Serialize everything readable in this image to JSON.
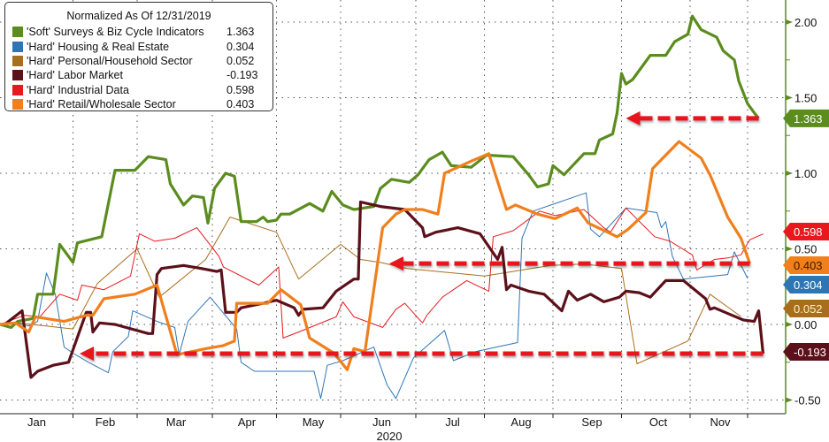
{
  "chart_data": {
    "type": "line",
    "title": "Normalized As Of 12/31/2019",
    "x_unit": "day of year 2020",
    "xlabel": "2020",
    "ylabel": "",
    "ylim": [
      -0.6,
      2.15
    ],
    "xlim": [
      0,
      355
    ],
    "grid": true,
    "legend_position": "top-left",
    "y_ticks": [
      {
        "v": 2.0,
        "label": "2.00"
      },
      {
        "v": 1.5,
        "label": "1.50"
      },
      {
        "v": 1.0,
        "label": "1.00"
      },
      {
        "v": 0.5,
        "label": "0.50"
      },
      {
        "v": 0.0,
        "label": "0.00"
      },
      {
        "v": -0.5,
        "label": "-0.50"
      }
    ],
    "x_month_labels": [
      {
        "d": 15,
        "label": "Jan"
      },
      {
        "d": 46,
        "label": "Feb"
      },
      {
        "d": 78,
        "label": "Mar"
      },
      {
        "d": 110,
        "label": "Apr"
      },
      {
        "d": 140,
        "label": "May"
      },
      {
        "d": 171,
        "label": "Jun"
      },
      {
        "d": 203,
        "label": "Jul"
      },
      {
        "d": 234,
        "label": "Aug"
      },
      {
        "d": 266,
        "label": "Sep"
      },
      {
        "d": 296,
        "label": "Oct"
      },
      {
        "d": 324,
        "label": "Nov"
      }
    ],
    "x_grid_days": [
      33,
      62,
      96,
      125,
      154,
      188,
      219,
      250,
      281,
      312,
      338
    ],
    "series": [
      {
        "name": "'Soft' Surveys & Biz Cycle Indicators",
        "last": "1.363",
        "color": "#5b8c1e",
        "tag_text": "#ffffff",
        "width": 3.2,
        "x": [
          0,
          5,
          8,
          15,
          17,
          24,
          27,
          33,
          35,
          46,
          52,
          61,
          67,
          75,
          77,
          83,
          87,
          92,
          94,
          97,
          102,
          106,
          109,
          116,
          119,
          121,
          125,
          127,
          131,
          140,
          146,
          150,
          155,
          160,
          169,
          172,
          177,
          185,
          189,
          194,
          200,
          204,
          213,
          220,
          232,
          239,
          243,
          248,
          250,
          255,
          264,
          269,
          271,
          277,
          279,
          281,
          283,
          286,
          294,
          301,
          305,
          311,
          313,
          317,
          324,
          327,
          332,
          334,
          338,
          341,
          343
        ],
        "y": [
          0,
          -0.02,
          0.02,
          0.04,
          0.2,
          0.2,
          0.53,
          0.41,
          0.54,
          0.58,
          1.02,
          1.02,
          1.11,
          1.09,
          0.93,
          0.79,
          0.85,
          0.84,
          0.67,
          0.9,
          1.0,
          0.98,
          0.68,
          0.68,
          0.71,
          0.68,
          0.69,
          0.73,
          0.73,
          0.8,
          0.75,
          0.88,
          0.79,
          0.76,
          0.78,
          0.9,
          0.96,
          0.94,
          0.99,
          1.09,
          1.14,
          1.05,
          1.04,
          1.12,
          1.11,
          0.99,
          0.91,
          0.93,
          1.05,
          0.99,
          1.13,
          1.13,
          1.22,
          1.26,
          1.4,
          1.66,
          1.59,
          1.62,
          1.78,
          1.78,
          1.87,
          1.92,
          2.04,
          1.95,
          1.9,
          1.81,
          1.75,
          1.61,
          1.46,
          1.4,
          1.363
        ]
      },
      {
        "name": "'Hard' Housing & Real Estate",
        "last": "0.304",
        "color": "#2e75b6",
        "tag_text": "#ffffff",
        "width": 1,
        "x": [
          0,
          7,
          13,
          17,
          21,
          25,
          29,
          33,
          40,
          49,
          51,
          58,
          60,
          71,
          79,
          81,
          85,
          95,
          107,
          109,
          115,
          142,
          145,
          148,
          155,
          169,
          175,
          179,
          187,
          201,
          205,
          215,
          234,
          236,
          241,
          265,
          267,
          271,
          283,
          297,
          299,
          301,
          304,
          309,
          329,
          332,
          338
        ],
        "y": [
          0,
          0.01,
          -0.01,
          0.02,
          0.34,
          0.2,
          -0.15,
          -0.19,
          -0.25,
          -0.32,
          -0.18,
          -0.08,
          0.09,
          0.02,
          -0.02,
          -0.2,
          0.02,
          0.18,
          -0.03,
          -0.25,
          -0.31,
          -0.31,
          -0.49,
          -0.27,
          -0.24,
          -0.15,
          -0.4,
          -0.49,
          -0.22,
          -0.04,
          -0.24,
          -0.18,
          -0.12,
          0.57,
          0.75,
          0.87,
          0.63,
          0.58,
          0.77,
          0.74,
          0.64,
          0.68,
          0.45,
          0.3,
          0.33,
          0.48,
          0.304
        ]
      },
      {
        "name": "'Hard' Personal/Household Sector",
        "last": "0.052",
        "color": "#a86e1c",
        "tag_text": "#fff3c0",
        "width": 1,
        "x": [
          0,
          8,
          33,
          44,
          62,
          72,
          93,
          104,
          125,
          135,
          154,
          163,
          172,
          184,
          219,
          249,
          264,
          281,
          288,
          311,
          321,
          335
        ],
        "y": [
          0,
          0.01,
          -0.03,
          0.27,
          0.5,
          0.18,
          0.43,
          0.71,
          0.61,
          0.3,
          0.53,
          0.43,
          0.41,
          0.37,
          0.32,
          0.39,
          0.4,
          0.37,
          -0.26,
          -0.11,
          0.2,
          0.052
        ]
      },
      {
        "name": "'Hard' Labor Market",
        "last": "-0.193",
        "color": "#5c1019",
        "tag_text": "#ffffff",
        "width": 3.2,
        "x": [
          3,
          10,
          14,
          17,
          24,
          31,
          39,
          41,
          42,
          45,
          52,
          67,
          69,
          71,
          73,
          83,
          91,
          98,
          100,
          102,
          107,
          109,
          119,
          125,
          133,
          135,
          137,
          146,
          152,
          160,
          162,
          163,
          172,
          183,
          191,
          192,
          197,
          207,
          217,
          225,
          227,
          229,
          231,
          239,
          246,
          254,
          257,
          261,
          267,
          273,
          280,
          283,
          289,
          294,
          301,
          309,
          319,
          321,
          323,
          331,
          336,
          341,
          343,
          345
        ],
        "y": [
          0.01,
          0.09,
          -0.35,
          -0.31,
          -0.27,
          -0.25,
          0.08,
          0.08,
          -0.05,
          0.01,
          0.0,
          -0.06,
          -0.06,
          0.33,
          0.37,
          0.39,
          0.37,
          0.35,
          0.36,
          0.08,
          0.08,
          0.11,
          0.14,
          0.16,
          0.11,
          0.06,
          0.1,
          0.11,
          0.22,
          0.3,
          0.3,
          0.81,
          0.78,
          0.76,
          0.64,
          0.58,
          0.61,
          0.64,
          0.6,
          0.43,
          0.51,
          0.23,
          0.26,
          0.22,
          0.2,
          0.09,
          0.22,
          0.16,
          0.2,
          0.15,
          0.18,
          0.22,
          0.21,
          0.18,
          0.29,
          0.29,
          0.17,
          0.1,
          0.11,
          0.06,
          0.03,
          0.02,
          0.09,
          -0.193
        ]
      },
      {
        "name": "'Hard' Industrial Data",
        "last": "0.598",
        "color": "#e8181c",
        "tag_text": "#ffffff",
        "width": 1,
        "x": [
          0,
          11,
          18,
          27,
          35,
          37,
          47,
          59,
          63,
          70,
          79,
          89,
          99,
          101,
          117,
          126,
          128,
          135,
          152,
          155,
          160,
          173,
          179,
          183,
          191,
          193,
          200,
          211,
          221,
          223,
          232,
          244,
          251,
          264,
          273,
          276,
          283,
          296,
          303,
          313,
          315,
          323,
          329,
          335,
          339,
          345
        ],
        "y": [
          0,
          0.06,
          0.05,
          0.2,
          0.16,
          0.26,
          0.23,
          0.32,
          0.6,
          0.55,
          0.57,
          0.64,
          0.45,
          0.38,
          0.26,
          0.38,
          -0.09,
          -0.05,
          0.05,
          0.15,
          0.05,
          -0.02,
          0.1,
          0.14,
          0.01,
          0.06,
          0.18,
          0.29,
          0.22,
          0.58,
          0.62,
          0.75,
          0.72,
          0.76,
          0.64,
          0.61,
          0.77,
          0.58,
          0.55,
          0.46,
          0.36,
          0.43,
          0.44,
          0.46,
          0.56,
          0.598
        ]
      },
      {
        "name": "'Hard' Retail/Wholesale Sector",
        "last": "0.403",
        "color": "#f07f1c",
        "tag_text": "#3a1a00",
        "width": 3.2,
        "x": [
          0,
          7,
          13,
          16,
          29,
          39,
          42,
          47,
          61,
          71,
          80,
          93,
          101,
          106,
          107,
          121,
          127,
          136,
          140,
          151,
          157,
          160,
          165,
          173,
          179,
          183,
          191,
          198,
          201,
          213,
          221,
          229,
          233,
          243,
          251,
          261,
          266,
          279,
          284,
          292,
          295,
          307,
          317,
          321,
          329,
          335,
          339
        ],
        "y": [
          0,
          0.01,
          -0.05,
          0.05,
          0.02,
          0.06,
          0.06,
          0.17,
          0.2,
          0.26,
          -0.2,
          -0.16,
          -0.14,
          -0.11,
          0.14,
          0.14,
          0.23,
          0.13,
          -0.09,
          -0.19,
          -0.3,
          -0.16,
          -0.18,
          0.64,
          0.73,
          0.76,
          0.76,
          0.73,
          1.0,
          1.08,
          1.13,
          0.76,
          0.79,
          0.73,
          0.7,
          0.77,
          0.67,
          0.58,
          0.63,
          0.74,
          1.03,
          1.21,
          1.1,
          0.99,
          0.71,
          0.57,
          0.403
        ]
      }
    ],
    "annotations": [
      {
        "type": "dashed-arrow",
        "y": 1.363,
        "x_from": 343,
        "x_to": 283,
        "color": "#e8131b"
      },
      {
        "type": "dashed-arrow",
        "y": 0.403,
        "x_from": 339,
        "x_to": 176,
        "color": "#e8131b"
      },
      {
        "type": "dashed-arrow",
        "y": -0.193,
        "x_from": 345,
        "x_to": 36,
        "color": "#e8131b"
      }
    ]
  }
}
